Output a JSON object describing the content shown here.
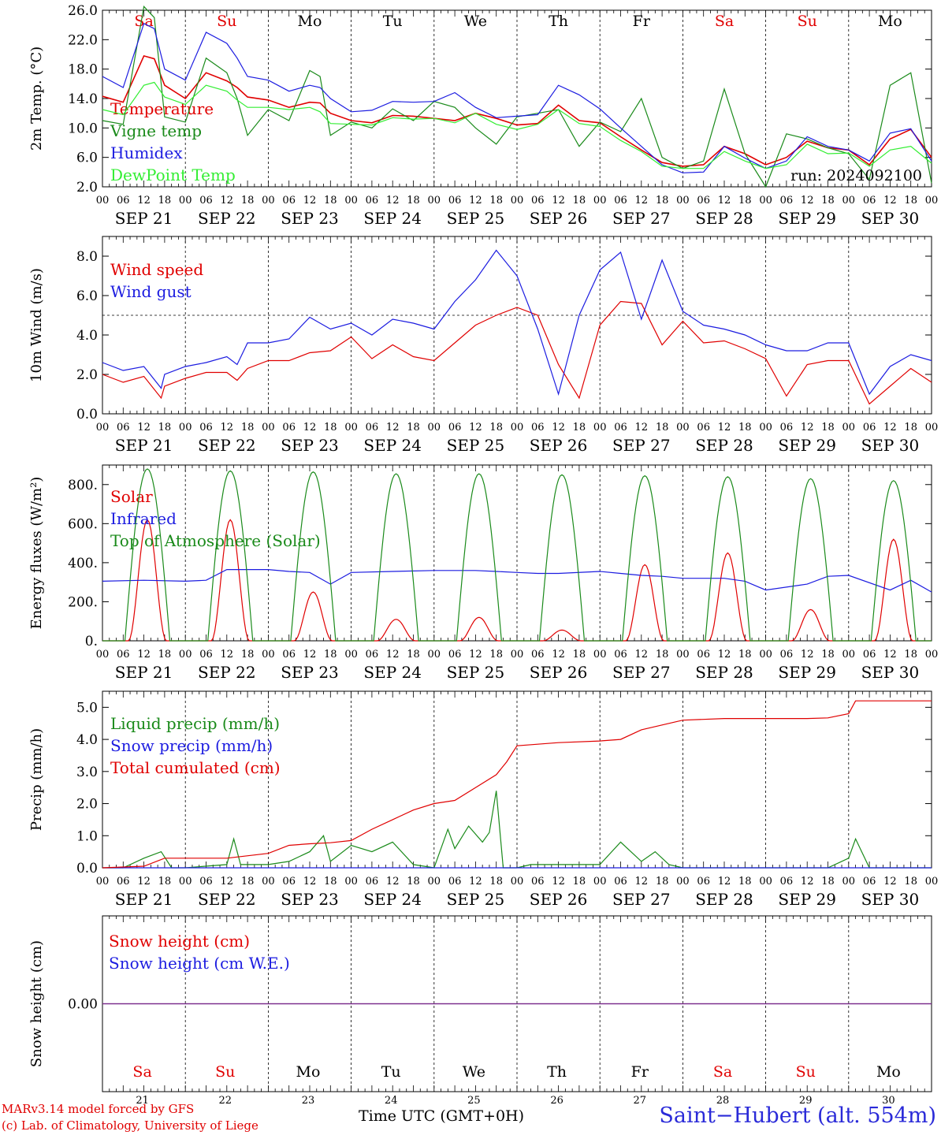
{
  "day_columns": [
    {
      "weekday": "Sa",
      "date_label": "SEP 21",
      "day": "21",
      "weekend": true
    },
    {
      "weekday": "Su",
      "date_label": "SEP 22",
      "day": "22",
      "weekend": true
    },
    {
      "weekday": "Mo",
      "date_label": "SEP 23",
      "day": "23",
      "weekend": false
    },
    {
      "weekday": "Tu",
      "date_label": "SEP 24",
      "day": "24",
      "weekend": false
    },
    {
      "weekday": "We",
      "date_label": "SEP 25",
      "day": "25",
      "weekend": false
    },
    {
      "weekday": "Th",
      "date_label": "SEP 26",
      "day": "26",
      "weekend": false
    },
    {
      "weekday": "Fr",
      "date_label": "SEP 27",
      "day": "27",
      "weekend": false
    },
    {
      "weekday": "Sa",
      "date_label": "SEP 28",
      "day": "28",
      "weekend": true
    },
    {
      "weekday": "Su",
      "date_label": "SEP 29",
      "day": "29",
      "weekend": true
    },
    {
      "weekday": "Mo",
      "date_label": "SEP 30",
      "day": "30",
      "weekend": false
    }
  ],
  "hour_labels": [
    "00",
    "06",
    "12",
    "18"
  ],
  "end_hour_label": "00",
  "colors": {
    "red": "#e00000",
    "green": "#1a8a1a",
    "blue": "#1c1ce0",
    "lightgreen": "#33ee33",
    "weekend": "#e00000",
    "purple": "#7a2a8a"
  },
  "footer": {
    "credit_line1": "MARv3.14 model forced by GFS",
    "credit_line2": "(c) Lab. of Climatology, University of Liege",
    "x_axis_title": "Time UTC (GMT+0H)",
    "station": "Saint−Hubert (alt. 554m)"
  },
  "chart_data": [
    {
      "type": "line",
      "ylabel": "2m Temp. (°C)",
      "ylim": [
        2.0,
        26.0
      ],
      "yticks": [
        "2.0",
        "6.0",
        "10.0",
        "14.0",
        "18.0",
        "22.0",
        "26.0"
      ],
      "ytick_values": [
        2,
        6,
        10,
        14,
        18,
        22,
        26
      ],
      "annotation": "run: 2024092100",
      "x_hours": [
        0,
        6,
        12,
        15,
        18,
        24,
        30,
        36,
        39,
        42,
        48,
        54,
        60,
        63,
        66,
        72,
        78,
        84,
        90,
        96,
        102,
        108,
        114,
        120,
        126,
        132,
        138,
        144,
        150,
        156,
        162,
        168,
        174,
        180,
        186,
        192,
        198,
        204,
        210,
        216,
        222,
        228,
        234,
        240
      ],
      "series": [
        {
          "name": "Temperature",
          "color": "red",
          "values": [
            14.3,
            13.5,
            19.8,
            19.4,
            15.8,
            14.0,
            17.5,
            16.4,
            15.5,
            14.2,
            13.8,
            12.8,
            13.5,
            13.4,
            12.0,
            11.0,
            10.7,
            11.7,
            11.6,
            11.3,
            11.0,
            12.0,
            11.3,
            10.4,
            10.6,
            13.1,
            11.0,
            10.7,
            8.8,
            7.0,
            5.3,
            4.8,
            5.0,
            7.5,
            6.5,
            5.0,
            6.0,
            8.2,
            7.3,
            7.0,
            5.0,
            8.5,
            9.8,
            6.0
          ]
        },
        {
          "name": "Vigne temp",
          "color": "green",
          "values": [
            11.0,
            10.5,
            26.5,
            25.0,
            11.5,
            10.8,
            19.5,
            17.5,
            14.0,
            9.0,
            12.5,
            11.0,
            17.8,
            17.0,
            9.0,
            10.8,
            10.0,
            12.6,
            11.0,
            13.6,
            12.8,
            10.0,
            7.8,
            11.5,
            12.0,
            12.5,
            7.5,
            10.8,
            9.5,
            14.0,
            6.0,
            4.5,
            5.5,
            15.3,
            6.5,
            2.0,
            9.2,
            8.5,
            7.3,
            6.5,
            3.0,
            15.8,
            17.5,
            2.5
          ]
        },
        {
          "name": "Humidex",
          "color": "blue",
          "values": [
            17.0,
            15.5,
            24.2,
            23.5,
            18.0,
            16.5,
            23.0,
            21.5,
            19.5,
            17.0,
            16.5,
            15.0,
            15.8,
            15.5,
            14.0,
            12.2,
            12.4,
            13.6,
            13.5,
            13.6,
            14.8,
            12.8,
            11.4,
            11.6,
            11.8,
            15.8,
            14.5,
            12.6,
            10.0,
            7.5,
            5.0,
            3.9,
            4.0,
            7.5,
            5.9,
            4.5,
            5.5,
            8.8,
            7.5,
            7.0,
            5.5,
            9.3,
            9.9,
            5.5
          ]
        },
        {
          "name": "DewPoint Temp",
          "color": "lightgreen",
          "values": [
            12.5,
            11.8,
            15.8,
            16.2,
            14.2,
            13.2,
            15.8,
            15.0,
            13.8,
            12.8,
            12.8,
            12.5,
            12.8,
            12.2,
            10.6,
            10.5,
            10.4,
            11.4,
            11.2,
            11.3,
            10.7,
            12.0,
            10.5,
            9.8,
            10.5,
            12.5,
            10.6,
            10.2,
            8.3,
            6.8,
            4.8,
            4.5,
            4.5,
            6.8,
            5.5,
            4.5,
            5.0,
            7.8,
            6.5,
            6.6,
            4.8,
            7.0,
            7.5,
            5.2
          ]
        }
      ]
    },
    {
      "type": "line",
      "ylabel": "10m Wind (m/s)",
      "ylim": [
        0,
        9
      ],
      "yticks": [
        "0.0",
        "2.0",
        "4.0",
        "6.0",
        "8.0"
      ],
      "ytick_values": [
        0,
        2,
        4,
        6,
        8
      ],
      "reference_line": 5.0,
      "x_hours": [
        0,
        6,
        12,
        17,
        18,
        24,
        30,
        36,
        39,
        42,
        48,
        54,
        60,
        66,
        72,
        78,
        84,
        90,
        96,
        102,
        108,
        114,
        120,
        126,
        132,
        138,
        144,
        150,
        156,
        162,
        168,
        174,
        180,
        186,
        192,
        198,
        204,
        210,
        216,
        222,
        228,
        234,
        240
      ],
      "series": [
        {
          "name": "Wind speed",
          "color": "red",
          "values": [
            2.0,
            1.6,
            1.9,
            0.8,
            1.4,
            1.8,
            2.1,
            2.1,
            1.7,
            2.3,
            2.7,
            2.7,
            3.1,
            3.2,
            3.9,
            2.8,
            3.5,
            2.9,
            2.7,
            3.6,
            4.5,
            5.0,
            5.4,
            5.0,
            2.5,
            0.8,
            4.5,
            5.7,
            5.6,
            3.5,
            4.7,
            3.6,
            3.7,
            3.3,
            2.8,
            0.9,
            2.5,
            2.7,
            2.7,
            0.5,
            1.4,
            2.3,
            1.6
          ]
        },
        {
          "name": "Wind gust",
          "color": "blue",
          "values": [
            2.6,
            2.2,
            2.4,
            1.3,
            2.0,
            2.4,
            2.6,
            2.9,
            2.5,
            3.6,
            3.6,
            3.8,
            4.9,
            4.3,
            4.6,
            4.0,
            4.8,
            4.6,
            4.3,
            5.7,
            6.8,
            8.3,
            7.0,
            4.3,
            1.0,
            5.0,
            7.3,
            8.2,
            4.8,
            7.8,
            5.2,
            4.5,
            4.3,
            4.0,
            3.5,
            3.2,
            3.2,
            3.6,
            3.6,
            1.0,
            2.4,
            3.0,
            2.7
          ]
        }
      ]
    },
    {
      "type": "line",
      "ylabel": "Energy fluxes (W/m²)",
      "ylim": [
        0,
        900
      ],
      "yticks": [
        "0.",
        "200.",
        "400.",
        "600.",
        "800."
      ],
      "ytick_values": [
        0,
        200,
        400,
        600,
        800
      ],
      "daily_toa_peaks": [
        880,
        870,
        865,
        855,
        855,
        850,
        845,
        840,
        830,
        820
      ],
      "daily_solar_peaks": [
        620,
        620,
        250,
        110,
        120,
        55,
        390,
        450,
        160,
        520
      ],
      "series": [
        {
          "name": "Solar",
          "color": "red"
        },
        {
          "name": "Infrared",
          "color": "blue",
          "x_hours": [
            0,
            12,
            24,
            30,
            36,
            48,
            54,
            60,
            66,
            72,
            84,
            96,
            108,
            114,
            120,
            126,
            132,
            144,
            150,
            156,
            162,
            168,
            180,
            186,
            192,
            204,
            210,
            216,
            228,
            234,
            240
          ],
          "values": [
            305,
            310,
            305,
            310,
            365,
            365,
            355,
            350,
            290,
            350,
            355,
            360,
            360,
            355,
            350,
            345,
            345,
            355,
            345,
            335,
            330,
            320,
            320,
            305,
            260,
            290,
            330,
            335,
            260,
            310,
            250
          ]
        },
        {
          "name": "Top of Atmosphere (Solar)",
          "color": "green"
        }
      ]
    },
    {
      "type": "line",
      "ylabel": "Precip (mm/h)",
      "ylim": [
        0,
        5.5
      ],
      "yticks": [
        "0.0",
        "1.0",
        "2.0",
        "3.0",
        "4.0",
        "5.0"
      ],
      "ytick_values": [
        0,
        1,
        2,
        3,
        4,
        5
      ],
      "series": [
        {
          "name": "Liquid precip (mm/h)",
          "color": "green",
          "x_hours": [
            0,
            6,
            12,
            17,
            20,
            24,
            36,
            38,
            40,
            48,
            54,
            60,
            64,
            66,
            72,
            78,
            84,
            90,
            96,
            100,
            102,
            106,
            110,
            112,
            114,
            116,
            120,
            124,
            126,
            132,
            138,
            144,
            150,
            156,
            160,
            164,
            168,
            186,
            192,
            210,
            216,
            218,
            222,
            240
          ],
          "values": [
            0,
            0,
            0.3,
            0.5,
            0,
            0,
            0.1,
            0.9,
            0.1,
            0.1,
            0.2,
            0.5,
            1.0,
            0.2,
            0.7,
            0.5,
            0.8,
            0.1,
            0,
            1.2,
            0.6,
            1.3,
            0.8,
            1.1,
            2.4,
            0,
            0,
            0.1,
            0.1,
            0.1,
            0.1,
            0.1,
            0.8,
            0.2,
            0.5,
            0.1,
            0,
            0,
            0,
            0,
            0.3,
            0.9,
            0,
            0
          ]
        },
        {
          "name": "Snow precip (mm/h)",
          "color": "blue",
          "x_hours": [
            0,
            240
          ],
          "values": [
            0,
            0
          ]
        },
        {
          "name": "Total cumulated (cm)",
          "color": "red",
          "x_hours": [
            0,
            12,
            18,
            24,
            36,
            48,
            54,
            60,
            66,
            72,
            78,
            84,
            90,
            96,
            102,
            108,
            114,
            117,
            120,
            132,
            144,
            150,
            156,
            168,
            180,
            192,
            204,
            210,
            216,
            218,
            240
          ],
          "values": [
            0,
            0.05,
            0.3,
            0.3,
            0.3,
            0.45,
            0.7,
            0.75,
            0.78,
            0.85,
            1.2,
            1.5,
            1.8,
            2.0,
            2.1,
            2.5,
            2.9,
            3.3,
            3.8,
            3.9,
            3.95,
            4.0,
            4.3,
            4.6,
            4.65,
            4.65,
            4.65,
            4.67,
            4.8,
            5.2,
            5.2
          ]
        }
      ]
    },
    {
      "type": "line",
      "ylabel": "Snow height (cm)",
      "ylim": [
        -1,
        1
      ],
      "yticks": [
        "0.00"
      ],
      "ytick_values": [
        0
      ],
      "series": [
        {
          "name": "Snow height (cm)",
          "color": "red",
          "x_hours": [
            0,
            240
          ],
          "values": [
            0,
            0
          ]
        },
        {
          "name": "Snow height (cm W.E.)",
          "color": "blue",
          "x_hours": [
            0,
            240
          ],
          "values": [
            0,
            0
          ]
        }
      ]
    }
  ]
}
